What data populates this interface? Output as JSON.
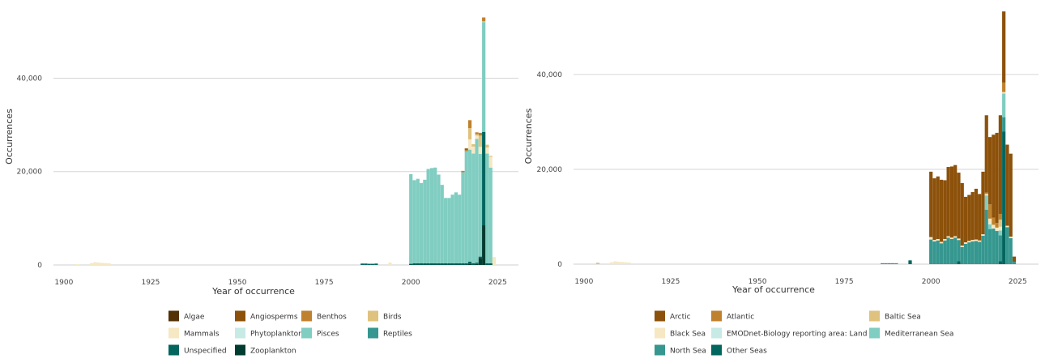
{
  "colors": {
    "Algae": "#543005",
    "Angiosperms": "#8c510a",
    "Benthos": "#bf812d",
    "Birds": "#dfc27d",
    "Mammals": "#f6e8c3",
    "Phytoplankton": "#c7eae5",
    "Pisces": "#80cdc1",
    "Reptiles": "#35978f",
    "Unspecified": "#01665e",
    "Zooplankton": "#003c30",
    "Arctic": "#8c510a",
    "Atlantic": "#bf812d",
    "Baltic Sea": "#dfc27d",
    "Black Sea": "#f6e8c3",
    "EMODnet-Biology reporting area: Land": "#c7eae5",
    "Mediterranean Sea": "#80cdc1",
    "North Sea": "#35978f",
    "Other Seas": "#01665e"
  },
  "chart_data": [
    {
      "type": "bar",
      "stacked": true,
      "xlabel": "Year of occurrence",
      "ylabel": "Occurrences",
      "xlim": [
        1897,
        2031
      ],
      "ylim": [
        0,
        55000
      ],
      "xticks": [
        "1900",
        "1925",
        "1950",
        "1975",
        "2000",
        "2025"
      ],
      "yticks": [
        "0",
        "20,000",
        "40,000"
      ],
      "grid": "horizontal",
      "legend_position": "bottom",
      "legend": [
        "Algae",
        "Angiosperms",
        "Benthos",
        "Birds",
        "Mammals",
        "Phytoplankton",
        "Pisces",
        "Reptiles",
        "Unspecified",
        "Zooplankton"
      ],
      "years": [
        1904,
        1908,
        1909,
        1910,
        1911,
        1912,
        1913,
        1986,
        1987,
        1988,
        1989,
        1990,
        1994,
        2000,
        2001,
        2002,
        2003,
        2004,
        2005,
        2006,
        2007,
        2008,
        2009,
        2010,
        2011,
        2012,
        2013,
        2014,
        2015,
        2016,
        2017,
        2018,
        2019,
        2020,
        2021,
        2022,
        2023,
        2024
      ],
      "series": [
        {
          "name": "Zooplankton",
          "values": [
            0,
            0,
            0,
            0,
            0,
            0,
            0,
            0,
            0,
            0,
            0,
            0,
            0,
            50,
            50,
            50,
            50,
            50,
            50,
            50,
            50,
            50,
            50,
            50,
            50,
            50,
            50,
            50,
            50,
            50,
            300,
            50,
            200,
            1500,
            8500,
            50,
            50,
            0
          ]
        },
        {
          "name": "Unspecified",
          "values": [
            0,
            0,
            0,
            0,
            0,
            0,
            0,
            300,
            300,
            250,
            250,
            300,
            0,
            200,
            300,
            300,
            300,
            300,
            300,
            300,
            300,
            300,
            300,
            300,
            300,
            300,
            300,
            300,
            300,
            300,
            400,
            300,
            300,
            300,
            20000,
            300,
            300,
            0
          ]
        },
        {
          "name": "Reptiles",
          "values": [
            0,
            0,
            0,
            0,
            0,
            0,
            0,
            0,
            0,
            0,
            0,
            0,
            0,
            0,
            0,
            0,
            0,
            0,
            0,
            0,
            0,
            0,
            0,
            0,
            0,
            0,
            0,
            0,
            0,
            0,
            0,
            0,
            0,
            0,
            0,
            0,
            0,
            0
          ]
        },
        {
          "name": "Pisces",
          "values": [
            0,
            0,
            0,
            0,
            0,
            0,
            0,
            0,
            0,
            0,
            0,
            0,
            0,
            19200,
            17800,
            18100,
            17200,
            17900,
            20200,
            20400,
            20500,
            19000,
            16800,
            14000,
            14000,
            14700,
            15200,
            14700,
            19500,
            24000,
            24000,
            23500,
            26500,
            22000,
            23500,
            23500,
            20500,
            0
          ]
        },
        {
          "name": "Phytoplankton",
          "values": [
            0,
            0,
            0,
            0,
            0,
            0,
            0,
            0,
            0,
            0,
            0,
            0,
            0,
            0,
            0,
            0,
            0,
            0,
            0,
            0,
            0,
            0,
            0,
            0,
            0,
            0,
            0,
            0,
            0,
            0,
            0,
            0,
            0,
            0,
            0,
            0,
            0,
            0
          ]
        },
        {
          "name": "Mammals",
          "values": [
            150,
            400,
            600,
            500,
            450,
            400,
            350,
            0,
            0,
            0,
            0,
            0,
            500,
            0,
            0,
            0,
            0,
            0,
            0,
            0,
            0,
            0,
            0,
            0,
            0,
            0,
            0,
            0,
            0,
            0,
            2200,
            1500,
            700,
            1500,
            0,
            1300,
            2300,
            1700
          ]
        },
        {
          "name": "Birds",
          "values": [
            0,
            0,
            0,
            0,
            0,
            0,
            0,
            0,
            0,
            0,
            0,
            0,
            0,
            0,
            0,
            0,
            0,
            0,
            0,
            0,
            0,
            0,
            0,
            0,
            0,
            0,
            0,
            0,
            0,
            0,
            2400,
            500,
            300,
            2400,
            200,
            600,
            200,
            0
          ]
        },
        {
          "name": "Benthos",
          "values": [
            0,
            0,
            0,
            0,
            0,
            0,
            0,
            0,
            0,
            0,
            0,
            0,
            0,
            0,
            0,
            0,
            0,
            0,
            0,
            0,
            0,
            0,
            0,
            0,
            0,
            0,
            0,
            0,
            300,
            300,
            1700,
            0,
            400,
            600,
            800,
            0,
            0,
            0
          ]
        },
        {
          "name": "Angiosperms",
          "values": [
            0,
            0,
            0,
            0,
            0,
            0,
            0,
            0,
            0,
            0,
            0,
            0,
            0,
            0,
            0,
            0,
            0,
            0,
            0,
            0,
            0,
            0,
            0,
            0,
            0,
            0,
            0,
            0,
            0,
            300,
            0,
            0,
            0,
            0,
            0,
            0,
            0,
            0
          ]
        },
        {
          "name": "Algae",
          "values": [
            0,
            0,
            0,
            0,
            0,
            0,
            0,
            0,
            0,
            0,
            0,
            0,
            0,
            0,
            0,
            0,
            0,
            0,
            0,
            0,
            0,
            0,
            0,
            0,
            0,
            0,
            0,
            0,
            0,
            0,
            0,
            0,
            0,
            0,
            0,
            0,
            0,
            0
          ]
        }
      ]
    },
    {
      "type": "bar",
      "stacked": true,
      "xlabel": "Year of occurrence",
      "ylabel": "Occurrences",
      "xlim": [
        1897,
        2031
      ],
      "ylim": [
        0,
        54000
      ],
      "xticks": [
        "1900",
        "1925",
        "1950",
        "1975",
        "2000",
        "2025"
      ],
      "yticks": [
        "0",
        "20,000",
        "40,000"
      ],
      "grid": "horizontal",
      "legend_position": "bottom",
      "legend": [
        "Arctic",
        "Atlantic",
        "Baltic Sea",
        "Black Sea",
        "EMODnet-Biology reporting area: Land",
        "Mediterranean Sea",
        "North Sea",
        "Other Seas"
      ],
      "years": [
        1904,
        1908,
        1909,
        1910,
        1911,
        1912,
        1913,
        1986,
        1987,
        1988,
        1989,
        1990,
        1994,
        2000,
        2001,
        2002,
        2003,
        2004,
        2005,
        2006,
        2007,
        2008,
        2009,
        2010,
        2011,
        2012,
        2013,
        2014,
        2015,
        2016,
        2017,
        2018,
        2019,
        2020,
        2021,
        2022,
        2023,
        2024
      ],
      "series": [
        {
          "name": "Other Seas",
          "values": [
            0,
            0,
            0,
            0,
            0,
            0,
            0,
            0,
            0,
            0,
            0,
            0,
            800,
            0,
            0,
            0,
            0,
            0,
            0,
            0,
            0,
            600,
            0,
            0,
            0,
            0,
            0,
            0,
            0,
            0,
            0,
            0,
            0,
            600,
            28000,
            0,
            0,
            0
          ]
        },
        {
          "name": "North Sea",
          "values": [
            0,
            0,
            0,
            0,
            0,
            0,
            0,
            200,
            200,
            200,
            200,
            200,
            0,
            5200,
            4800,
            5000,
            4400,
            5000,
            5600,
            5300,
            5600,
            4500,
            3600,
            4300,
            4600,
            4800,
            4900,
            4700,
            6000,
            11500,
            7400,
            7500,
            7000,
            5500,
            3000,
            7800,
            5500,
            500
          ]
        },
        {
          "name": "Mediterranean Sea",
          "values": [
            0,
            0,
            0,
            0,
            0,
            0,
            0,
            0,
            0,
            0,
            0,
            0,
            0,
            0,
            0,
            0,
            0,
            0,
            0,
            0,
            0,
            0,
            0,
            0,
            0,
            0,
            0,
            0,
            0,
            3000,
            1000,
            0,
            0,
            1000,
            5000,
            0,
            0,
            0
          ]
        },
        {
          "name": "EMODnet-Biology reporting area: Land",
          "values": [
            0,
            0,
            0,
            0,
            0,
            0,
            0,
            0,
            0,
            0,
            0,
            0,
            0,
            0,
            0,
            0,
            0,
            0,
            0,
            0,
            0,
            0,
            0,
            0,
            0,
            0,
            0,
            0,
            0,
            0,
            0,
            0,
            0,
            0,
            0,
            0,
            0,
            0
          ]
        },
        {
          "name": "Black Sea",
          "values": [
            100,
            400,
            600,
            500,
            450,
            400,
            350,
            0,
            0,
            0,
            0,
            0,
            0,
            500,
            300,
            300,
            300,
            300,
            300,
            300,
            300,
            300,
            300,
            300,
            300,
            300,
            300,
            300,
            300,
            300,
            1200,
            800,
            700,
            800,
            300,
            300,
            300,
            0
          ]
        },
        {
          "name": "Baltic Sea",
          "values": [
            0,
            0,
            0,
            0,
            0,
            0,
            0,
            0,
            0,
            0,
            0,
            0,
            0,
            0,
            0,
            0,
            0,
            0,
            0,
            0,
            0,
            0,
            0,
            0,
            0,
            0,
            0,
            0,
            0,
            0,
            0,
            0,
            0,
            1500,
            0,
            0,
            0,
            0
          ]
        },
        {
          "name": "Atlantic",
          "values": [
            100,
            0,
            0,
            0,
            0,
            0,
            0,
            0,
            0,
            0,
            0,
            0,
            0,
            0,
            0,
            0,
            0,
            0,
            0,
            0,
            0,
            0,
            0,
            0,
            0,
            0,
            0,
            0,
            0,
            300,
            3000,
            1500,
            1000,
            1200,
            2000,
            0,
            0,
            0
          ]
        },
        {
          "name": "Arctic",
          "values": [
            0,
            0,
            0,
            0,
            0,
            0,
            0,
            0,
            0,
            0,
            0,
            0,
            0,
            13800,
            13000,
            13200,
            13100,
            12400,
            14600,
            15000,
            15000,
            13900,
            13200,
            9600,
            9700,
            10100,
            10700,
            9800,
            13200,
            16300,
            14200,
            17500,
            19000,
            20800,
            15000,
            17100,
            17500,
            1100
          ]
        }
      ]
    }
  ]
}
